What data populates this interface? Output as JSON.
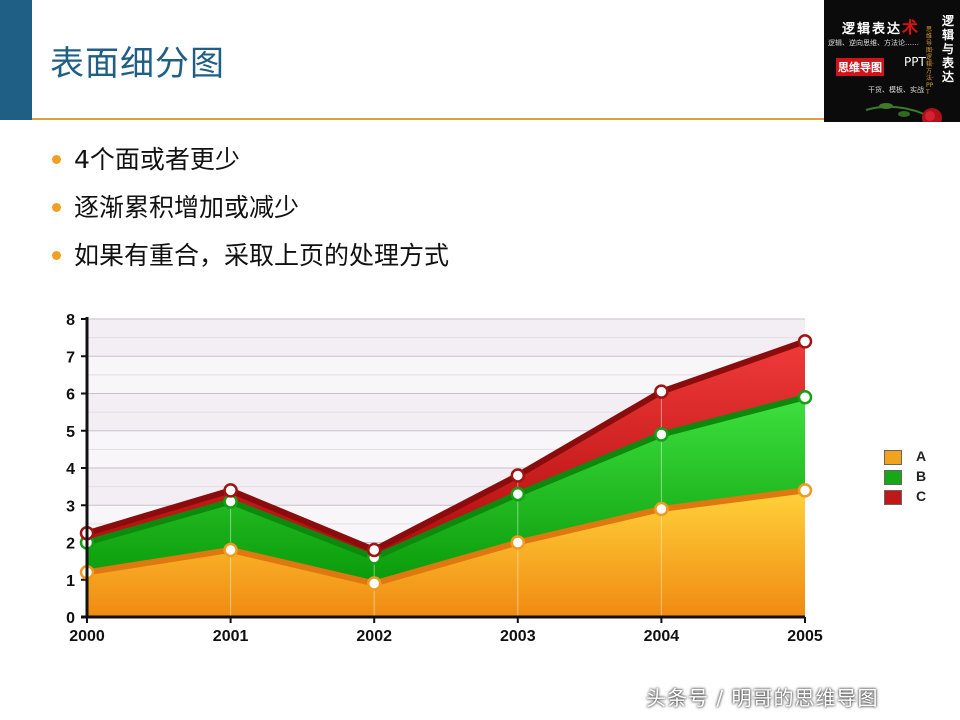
{
  "header": {
    "title": "表面细分图"
  },
  "logo": {
    "line1": "逻辑表达",
    "line1_accent": "术",
    "line2": "逻辑、逆向思维、方法论……",
    "line3": "思维导图",
    "line4": "PPT",
    "line5": "干货、模板、实战",
    "vertical": "逻辑与表达",
    "vertical_small": "思维导图·逻辑·方法·PPT",
    "icon": "rose-icon"
  },
  "bullets": [
    "4个面或者更少",
    "逐渐累积增加或减少",
    "如果有重合，采取上页的处理方式"
  ],
  "watermark": "头条号 / 明哥的思维导图",
  "colors": {
    "accent_blue": "#1f5f86",
    "rule_gold": "#d9a23a",
    "bullet_orange": "#f0a020",
    "series_A": "#f2a21c",
    "series_B": "#17a817",
    "series_C": "#c01818"
  },
  "chart_data": {
    "type": "area",
    "stacked": true,
    "x": [
      "2000",
      "2001",
      "2002",
      "2003",
      "2004",
      "2005"
    ],
    "ylim": [
      0,
      8
    ],
    "yticks": [
      "0",
      "1",
      "2",
      "3",
      "4",
      "5",
      "6",
      "7",
      "8"
    ],
    "grid": true,
    "legend_position": "right",
    "series": [
      {
        "name": "A",
        "values": [
          1.2,
          1.8,
          0.9,
          2.0,
          2.9,
          3.4
        ]
      },
      {
        "name": "B",
        "values": [
          0.8,
          1.3,
          0.7,
          1.3,
          2.0,
          2.5
        ]
      },
      {
        "name": "C",
        "values": [
          0.25,
          0.3,
          0.2,
          0.5,
          1.15,
          1.5
        ]
      }
    ]
  }
}
